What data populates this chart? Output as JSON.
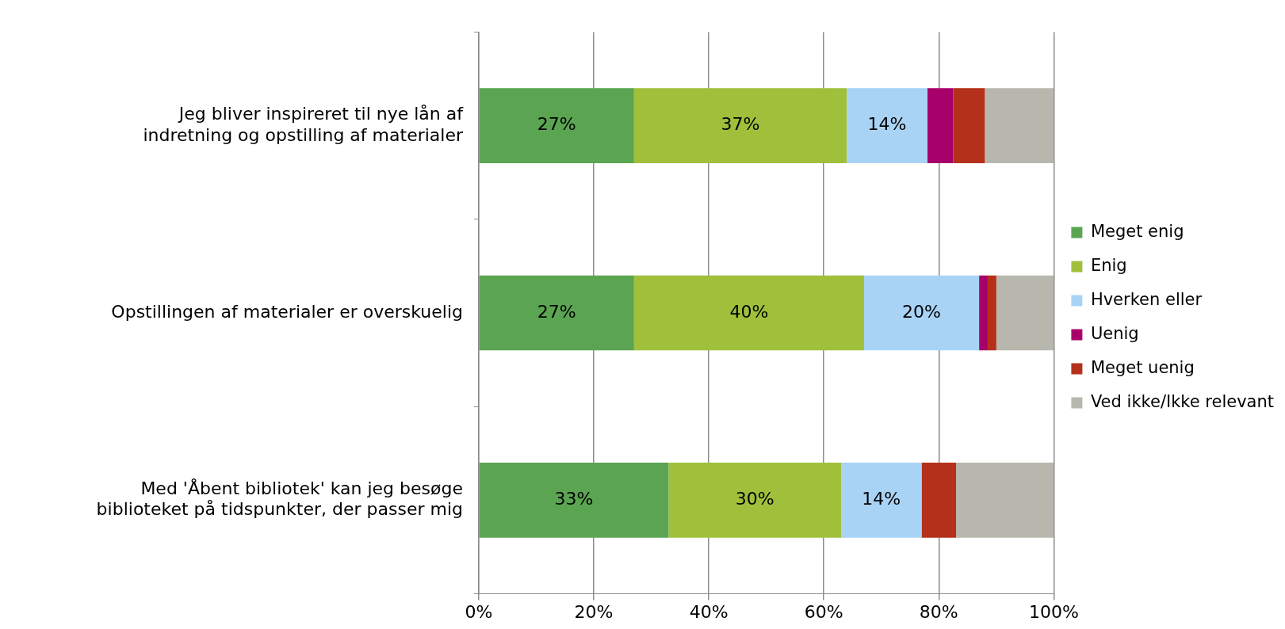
{
  "chart_data": {
    "type": "bar",
    "orientation": "horizontal",
    "stacked": true,
    "categories": [
      "Jeg bliver inspireret til nye lån af indretning og opstilling af materialer",
      "Opstillingen af materialer er overskuelig",
      "Med 'Åbent bibliotek' kan jeg besøge biblioteket på tidspunkter, der passer mig"
    ],
    "series": [
      {
        "name": "Meget enig",
        "color": "#5ba552",
        "values": [
          27,
          27,
          33
        ],
        "value_labels": [
          "27%",
          "27%",
          "33%"
        ]
      },
      {
        "name": "Enig",
        "color": "#a0c03c",
        "values": [
          37,
          40,
          30
        ],
        "value_labels": [
          "37%",
          "40%",
          "30%"
        ]
      },
      {
        "name": "Hverken eller",
        "color": "#a9d3f5",
        "values": [
          14,
          20,
          14
        ],
        "value_labels": [
          "14%",
          "20%",
          "14%"
        ]
      },
      {
        "name": "Uenig",
        "color": "#a8006b",
        "values": [
          4.5,
          1.5,
          0
        ],
        "value_labels": [
          null,
          null,
          null
        ]
      },
      {
        "name": "Meget uenig",
        "color": "#b5301a",
        "values": [
          5.5,
          1.5,
          6
        ],
        "value_labels": [
          null,
          null,
          null
        ]
      },
      {
        "name": "Ved ikke/Ikke relevant",
        "color": "#b8b7ae",
        "values": [
          12,
          10,
          17
        ],
        "value_labels": [
          null,
          null,
          null
        ]
      }
    ],
    "xlim": [
      0,
      100
    ],
    "xticks": [
      {
        "value": 0,
        "label": "0%"
      },
      {
        "value": 20,
        "label": "20%"
      },
      {
        "value": 40,
        "label": "40%"
      },
      {
        "value": 60,
        "label": "60%"
      },
      {
        "value": 80,
        "label": "80%"
      },
      {
        "value": 100,
        "label": "100%"
      }
    ],
    "grid": "x",
    "legend": "right"
  }
}
